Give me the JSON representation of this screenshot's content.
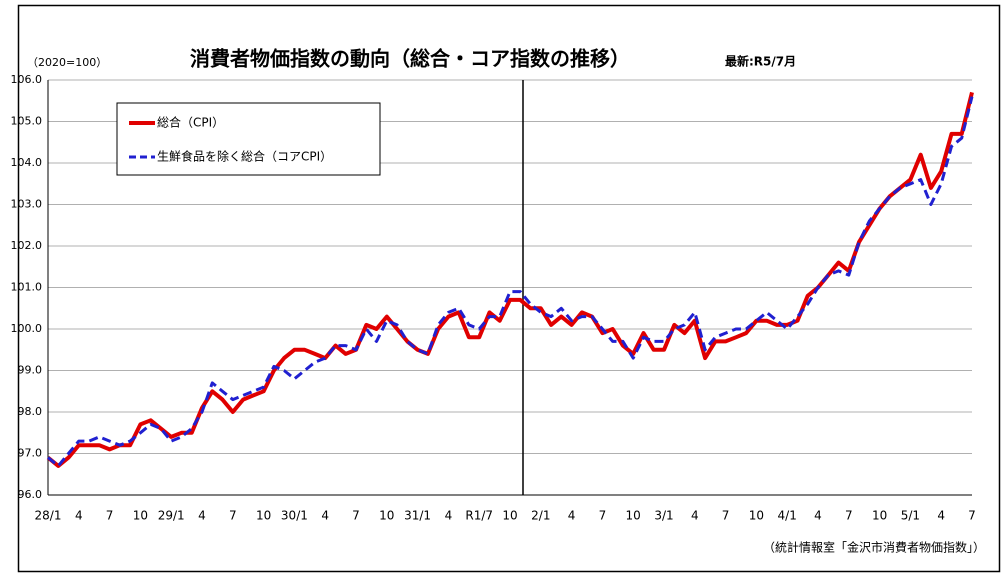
{
  "chart_data": {
    "type": "line",
    "title": "消費者物価指数の動向（総合・コア指数の推移）",
    "subtitle": "最新:R5/7月",
    "unit_label": "（2020=100）",
    "source": "（統計情報室「金沢市消費者物価指数」）",
    "categories": [
      "28/1",
      null,
      null,
      "4",
      null,
      null,
      "7",
      null,
      null,
      "10",
      null,
      null,
      "29/1",
      null,
      null,
      "4",
      null,
      null,
      "7",
      null,
      null,
      "10",
      null,
      null,
      "30/1",
      null,
      null,
      "4",
      null,
      null,
      "7",
      null,
      null,
      "10",
      null,
      null,
      "31/1",
      null,
      null,
      "4",
      null,
      null,
      "R1/7",
      null,
      null,
      "10",
      null,
      null,
      "2/1",
      null,
      null,
      "4",
      null,
      null,
      "7",
      null,
      null,
      "10",
      null,
      null,
      "3/1",
      null,
      null,
      "4",
      null,
      null,
      "7",
      null,
      null,
      "10",
      null,
      null,
      "4/1",
      null,
      null,
      "4",
      null,
      null,
      "7",
      null,
      null,
      "10",
      null,
      null,
      "5/1",
      null,
      null,
      "4",
      null,
      null,
      "7"
    ],
    "series": [
      {
        "name": "総合（CPI）",
        "color": "#e00000",
        "line_style": "solid",
        "values": [
          96.9,
          96.7,
          96.9,
          97.2,
          97.2,
          97.2,
          97.1,
          97.2,
          97.2,
          97.7,
          97.8,
          97.6,
          97.4,
          97.5,
          97.5,
          98.1,
          98.5,
          98.3,
          98.0,
          98.3,
          98.4,
          98.5,
          99.0,
          99.3,
          99.5,
          99.5,
          99.4,
          99.3,
          99.6,
          99.4,
          99.5,
          100.1,
          100.0,
          100.3,
          100.0,
          99.7,
          99.5,
          99.4,
          100.0,
          100.3,
          100.4,
          99.8,
          99.8,
          100.4,
          100.2,
          100.7,
          100.7,
          100.5,
          100.5,
          100.1,
          100.3,
          100.1,
          100.4,
          100.3,
          99.9,
          100.0,
          99.6,
          99.4,
          99.9,
          99.5,
          99.5,
          100.1,
          99.9,
          100.2,
          99.3,
          99.7,
          99.7,
          99.8,
          99.9,
          100.2,
          100.2,
          100.1,
          100.1,
          100.2,
          100.8,
          101.0,
          101.3,
          101.6,
          101.4,
          102.1,
          102.5,
          102.9,
          103.2,
          103.4,
          103.6,
          104.2,
          103.4,
          103.8,
          104.7,
          104.7,
          105.7
        ]
      },
      {
        "name": "生鮮食品を除く総合（コアCPI）",
        "color": "#2020d0",
        "line_style": "dashed",
        "values": [
          96.9,
          96.7,
          97.0,
          97.3,
          97.3,
          97.4,
          97.3,
          97.2,
          97.3,
          97.5,
          97.7,
          97.6,
          97.3,
          97.4,
          97.6,
          98.0,
          98.7,
          98.5,
          98.3,
          98.4,
          98.5,
          98.6,
          99.1,
          99.0,
          98.8,
          99.0,
          99.2,
          99.3,
          99.6,
          99.6,
          99.5,
          100.0,
          99.7,
          100.2,
          100.1,
          99.7,
          99.5,
          99.4,
          100.1,
          100.4,
          100.5,
          100.1,
          100.0,
          100.3,
          100.3,
          100.9,
          100.9,
          100.6,
          100.4,
          100.3,
          100.5,
          100.2,
          100.3,
          100.3,
          100.0,
          99.7,
          99.7,
          99.3,
          99.8,
          99.7,
          99.7,
          100.0,
          100.1,
          100.4,
          99.5,
          99.8,
          99.9,
          100.0,
          100.0,
          100.2,
          100.4,
          100.2,
          100.0,
          100.3,
          100.6,
          101.0,
          101.3,
          101.4,
          101.3,
          102.1,
          102.6,
          102.9,
          103.2,
          103.4,
          103.5,
          103.6,
          103.0,
          103.5,
          104.4,
          104.6,
          105.6
        ]
      }
    ],
    "ylim": [
      96,
      106
    ],
    "yticks": [
      {
        "value": 96,
        "label": "96.0"
      },
      {
        "value": 97,
        "label": "97.0"
      },
      {
        "value": 98,
        "label": "98.0"
      },
      {
        "value": 99,
        "label": "99.0"
      },
      {
        "value": 100,
        "label": "100.0"
      },
      {
        "value": 101,
        "label": "101.0"
      },
      {
        "value": 102,
        "label": "102.0"
      },
      {
        "value": 103,
        "label": "103.0"
      },
      {
        "value": 104,
        "label": "104.0"
      },
      {
        "value": 105,
        "label": "105.0"
      },
      {
        "value": 106,
        "label": "106.0"
      }
    ],
    "grid": true,
    "legend_position": "upper left"
  }
}
